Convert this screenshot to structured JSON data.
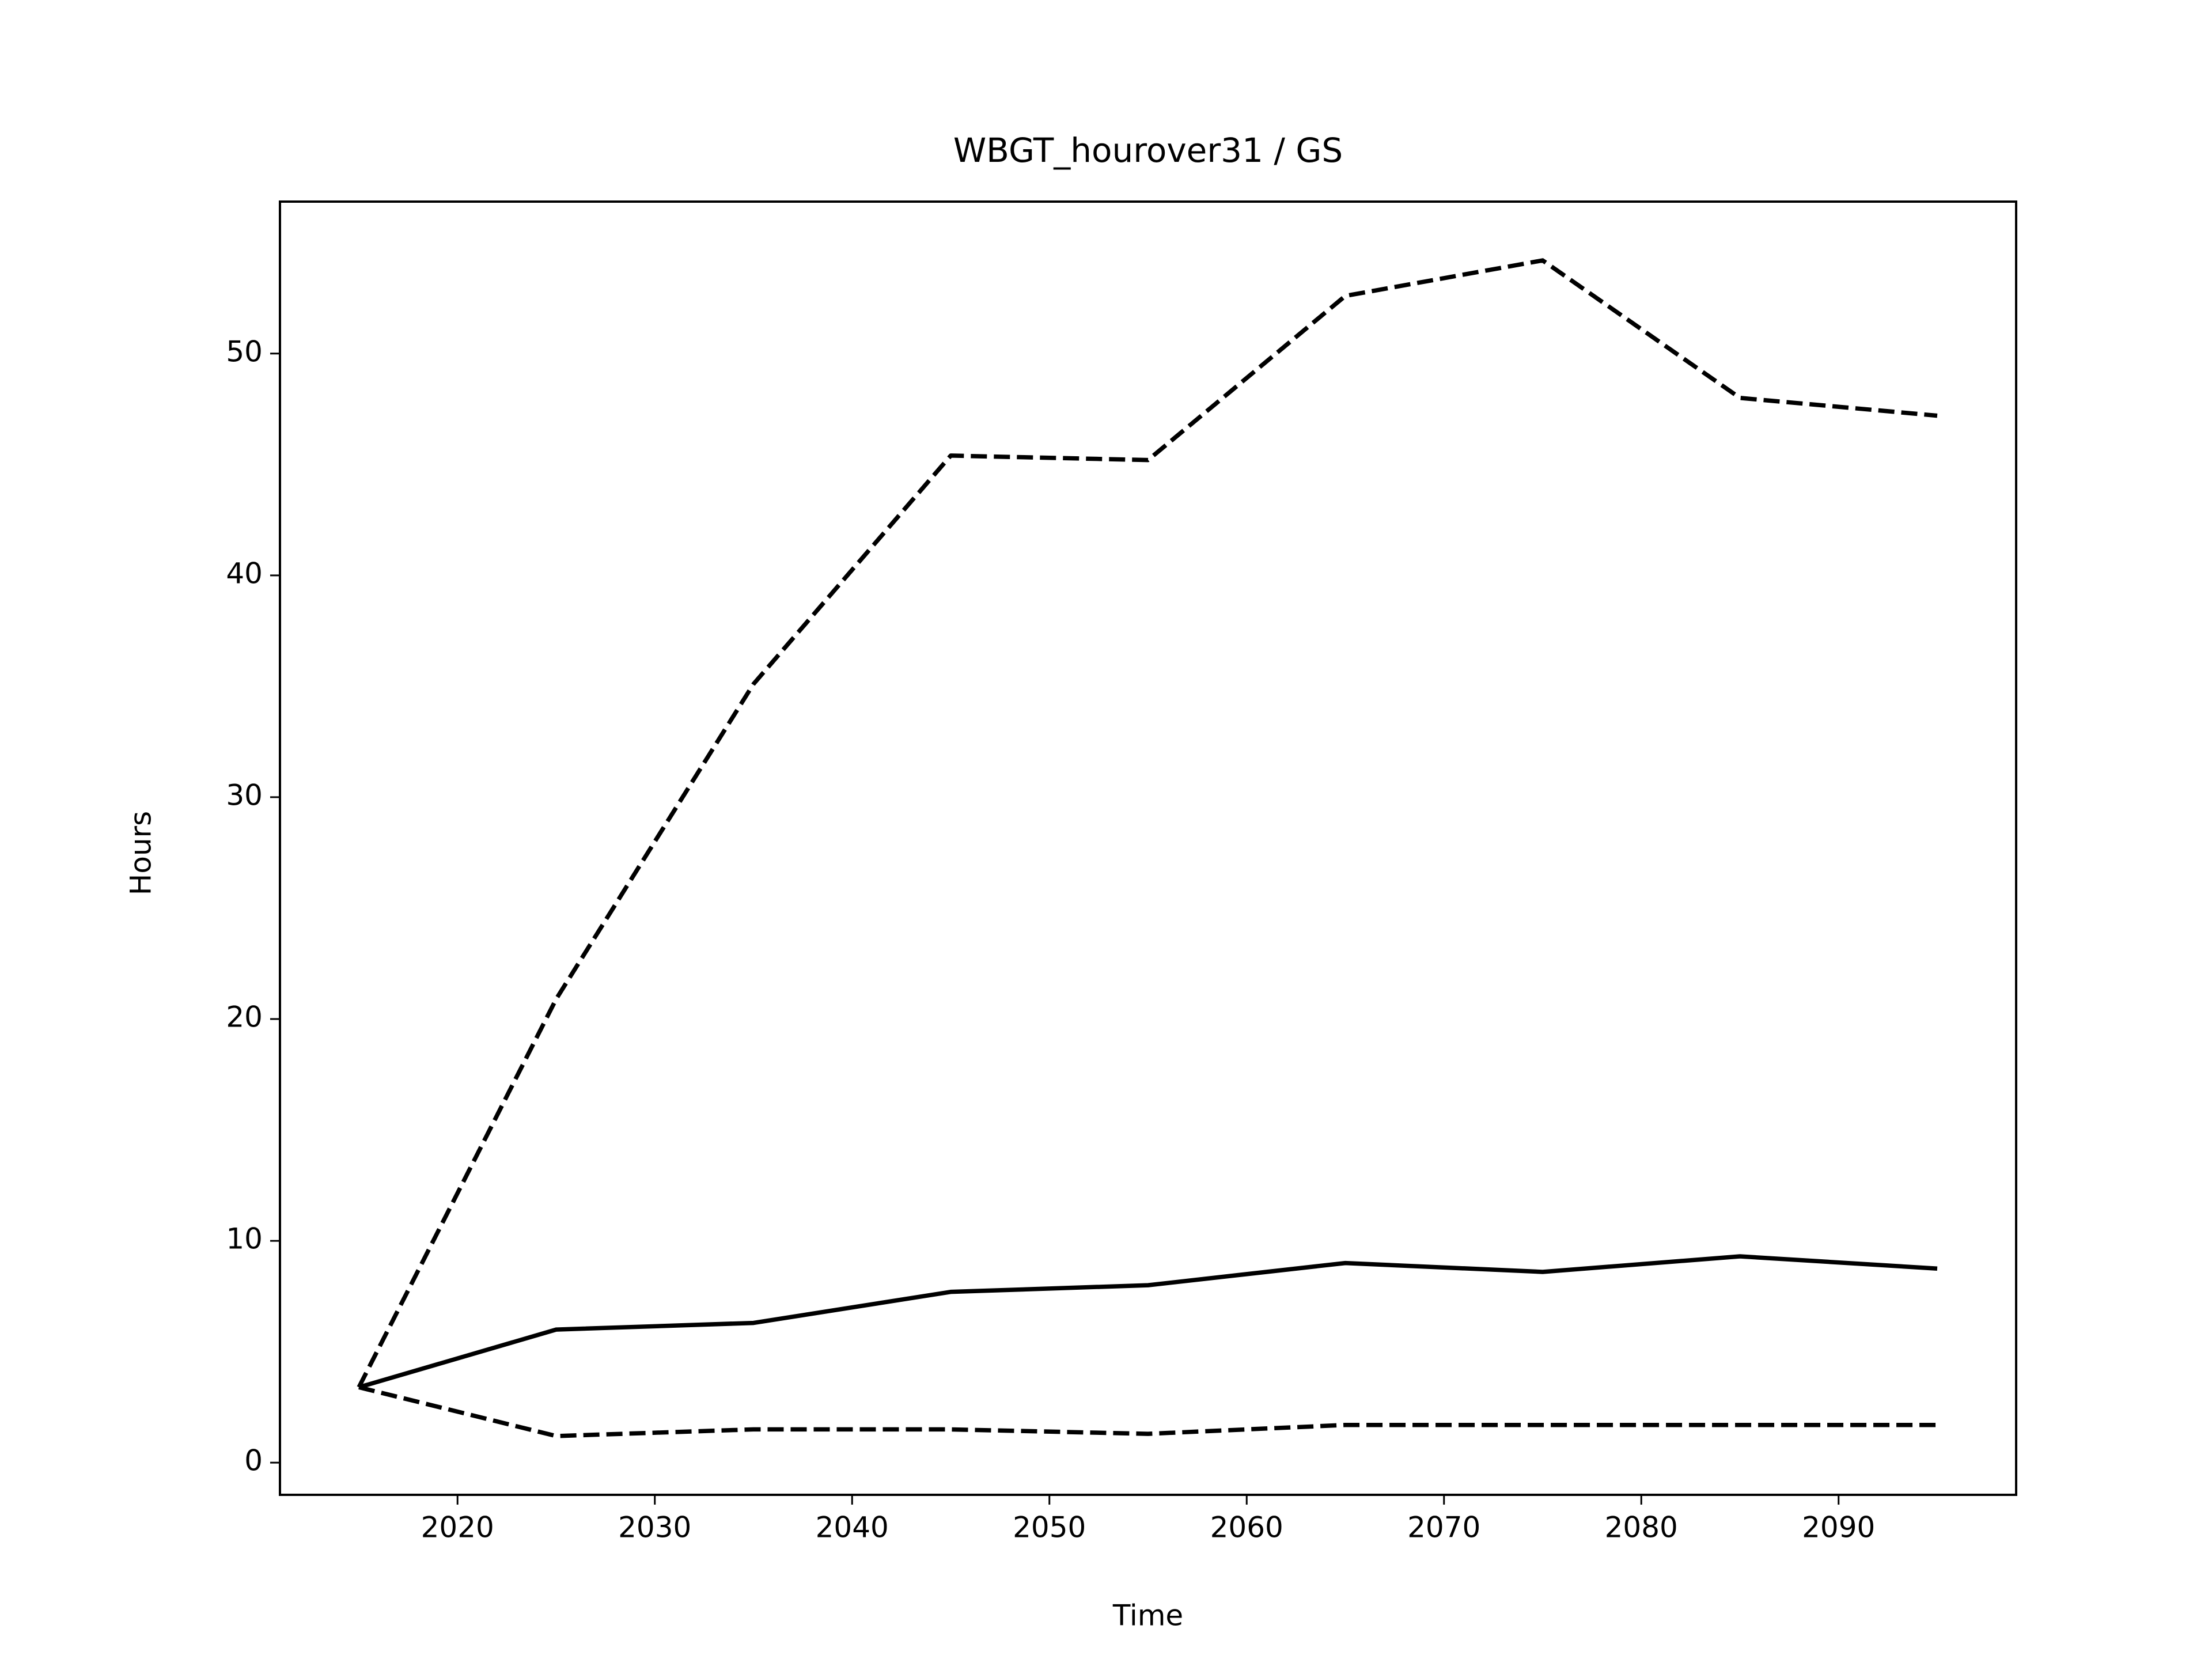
{
  "chart_data": {
    "type": "line",
    "title": "WBGT_hourover31 / GS",
    "x_label": "Time",
    "y_label": "Hours",
    "x": [
      2015,
      2025,
      2035,
      2045,
      2055,
      2065,
      2075,
      2085,
      2095
    ],
    "series": [
      {
        "color": "#000000",
        "dash": "solid",
        "values": [
          3.4,
          6.0,
          6.3,
          7.7,
          8.0,
          9.0,
          8.6,
          9.3,
          8.75
        ]
      },
      {
        "color": "#000000",
        "dash": "dashed",
        "values": [
          3.4,
          20.9,
          35.1,
          45.4,
          45.2,
          52.6,
          54.2,
          48.0,
          47.2
        ]
      },
      {
        "color": "#000000",
        "dash": "dashed",
        "values": [
          3.4,
          1.2,
          1.5,
          1.5,
          1.3,
          1.7,
          1.7,
          1.7,
          1.7
        ]
      }
    ],
    "xlim": [
      2011,
      2099
    ],
    "xticks": [
      2020,
      2030,
      2040,
      2050,
      2060,
      2070,
      2080,
      2090
    ],
    "ylim": [
      -1.45,
      56.85
    ],
    "yticks": [
      0,
      10,
      20,
      30,
      40,
      50
    ],
    "grid": false
  }
}
